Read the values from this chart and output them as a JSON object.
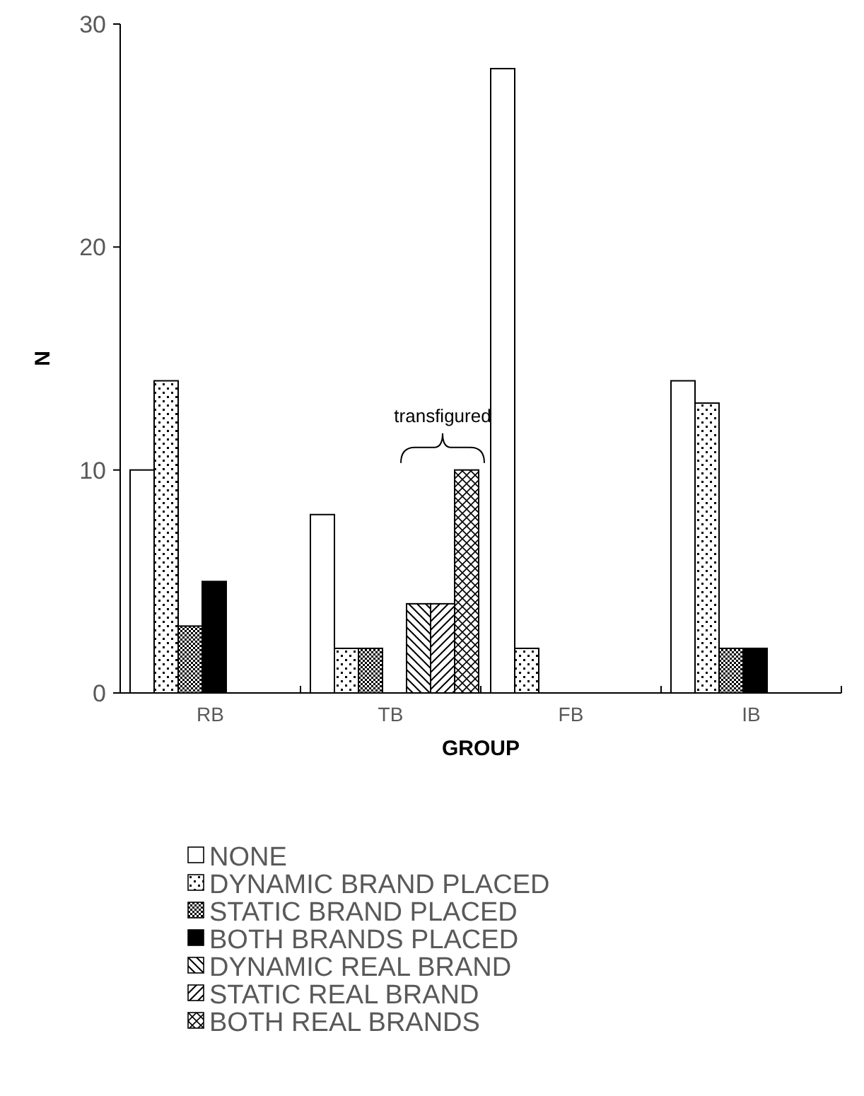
{
  "chart_data": {
    "type": "bar",
    "xlabel": "GROUP",
    "ylabel": "N",
    "categories": [
      "RB",
      "TB",
      "FB",
      "IB"
    ],
    "series": [
      {
        "name": "NONE",
        "color": "#ffffff",
        "values": [
          10,
          8,
          28,
          14
        ]
      },
      {
        "name": "DYNAMIC BRAND PLACED",
        "color": "#000000",
        "values": [
          14,
          2,
          2,
          13
        ]
      },
      {
        "name": "STATIC BRAND PLACED",
        "color": "#000000",
        "values": [
          3,
          2,
          0,
          2
        ]
      },
      {
        "name": "BOTH BRANDS PLACED",
        "color": "#000000",
        "values": [
          5,
          0,
          0,
          2
        ]
      },
      {
        "name": "DYNAMIC REAL BRAND",
        "color": "#000000",
        "values": [
          0,
          4,
          0,
          0
        ]
      },
      {
        "name": "STATIC REAL BRAND",
        "color": "#000000",
        "values": [
          0,
          4,
          0,
          0
        ]
      },
      {
        "name": "BOTH REAL BRANDS",
        "color": "#000000",
        "values": [
          0,
          10,
          0,
          0
        ]
      }
    ],
    "ylim": [
      0,
      30
    ],
    "yticks": [
      0,
      10,
      20,
      30
    ],
    "grid": false,
    "legend": "bottom",
    "annotations": [
      "transfigured"
    ]
  }
}
